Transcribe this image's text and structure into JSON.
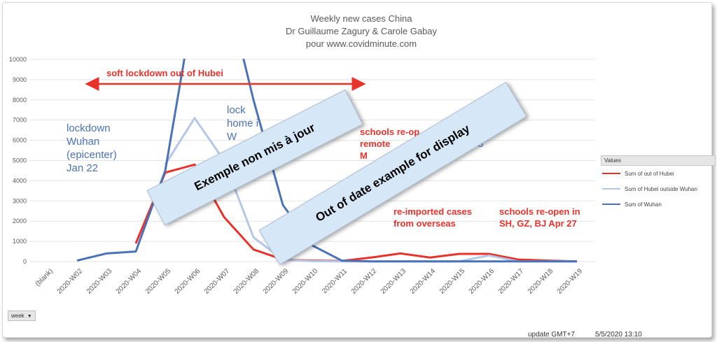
{
  "title_lines": [
    "Weekly new cases China",
    "Dr Guillaume Zagury & Carole Gabay",
    "pour www.covidminute.com"
  ],
  "chart_data": {
    "type": "line",
    "title": "Weekly new cases China",
    "categories": [
      "(blank)",
      "2020-W02",
      "2020-W03",
      "2020-W04",
      "2020-W05",
      "2020-W06",
      "2020-W07",
      "2020-W08",
      "2020-W09",
      "2020-W10",
      "2020-W11",
      "2020-W12",
      "2020-W13",
      "2020-W14",
      "2020-W15",
      "2020-W16",
      "2020-W17",
      "2020-W18",
      "2020-W19"
    ],
    "y_ticks": [
      0,
      1000,
      2000,
      3000,
      4000,
      5000,
      6000,
      7000,
      8000,
      9000,
      10000
    ],
    "ylim": [
      0,
      10000
    ],
    "series": [
      {
        "name": "Sum of out of Hubei",
        "color": "#e8322a",
        "values": [
          null,
          null,
          null,
          900,
          4400,
          4800,
          2200,
          600,
          100,
          50,
          30,
          200,
          400,
          200,
          380,
          380,
          100,
          50,
          10
        ]
      },
      {
        "name": "Sum of Hubei outside Wuhan",
        "color": "#b4c7e7",
        "values": [
          null,
          null,
          null,
          null,
          4800,
          7100,
          5000,
          1200,
          100,
          20,
          10,
          10,
          10,
          10,
          10,
          300,
          10,
          10,
          10
        ]
      },
      {
        "name": "Sum of Wuhan",
        "color": "#4a72b8",
        "values": [
          null,
          50,
          400,
          500,
          4500,
          13000,
          14000,
          8000,
          2800,
          800,
          50,
          10,
          10,
          10,
          10,
          10,
          10,
          10,
          10
        ]
      }
    ]
  },
  "legend": {
    "header": "Values"
  },
  "annotations": {
    "soft_lockdown": "soft lockdown out of Hubei",
    "lockdown_wuhan": [
      "lockdown",
      "Wuhan",
      "(epicenter)",
      "Jan 22"
    ],
    "lock_home": [
      "lock",
      "home i",
      "W"
    ],
    "schools_reopen_1": [
      "schools re-op",
      "remote",
      "M"
    ],
    "schools_reopen_1_tail": "8",
    "reimported": [
      "re-imported cases",
      "from overseas"
    ],
    "schools_reopen_2": [
      "schools re-open in",
      "SH, GZ, BJ Apr 27"
    ]
  },
  "banners": {
    "left": "Exemple non mis à jour",
    "right": "Out of date example for display"
  },
  "filter_button": {
    "label": "week"
  },
  "footer": {
    "update": "update GMT+7",
    "date": "5/5/2020 13:10"
  }
}
